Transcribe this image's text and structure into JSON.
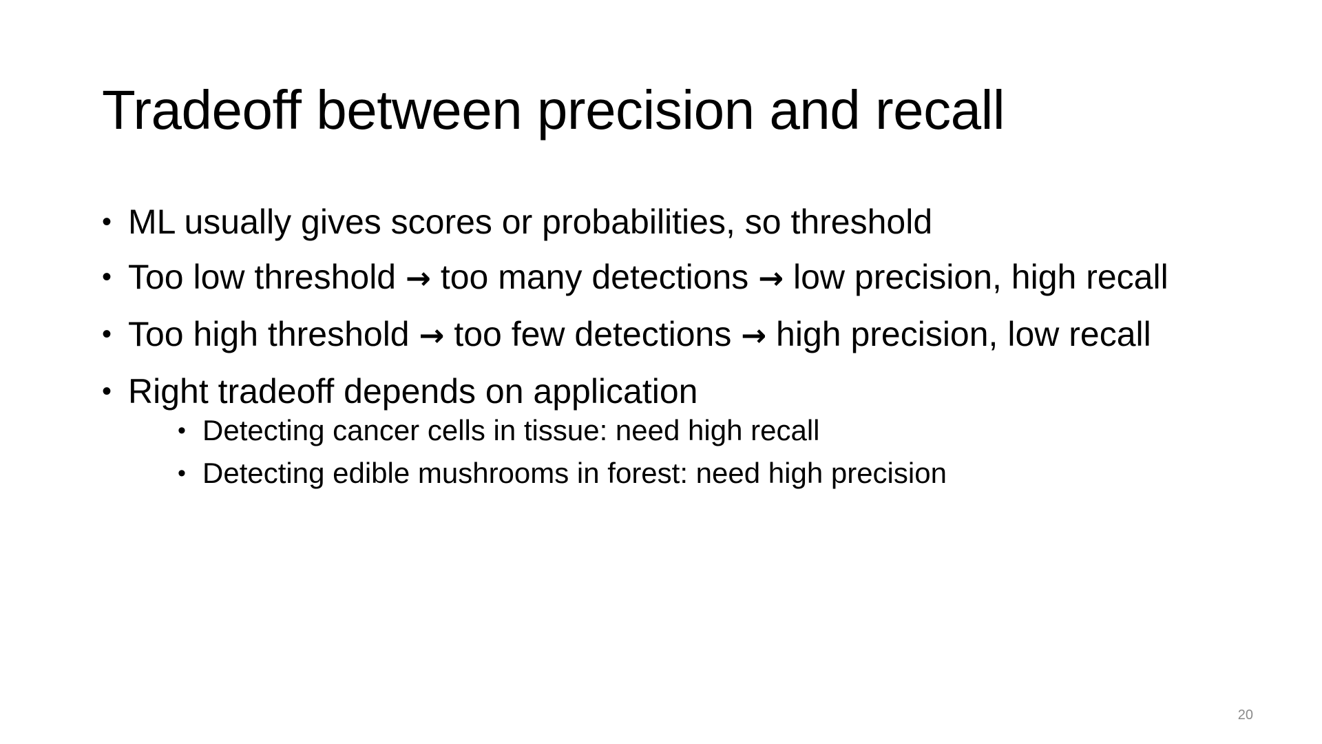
{
  "slide": {
    "title": "Tradeoff between precision and recall",
    "bullets": [
      {
        "text": "ML usually gives scores or probabilities, so threshold"
      },
      {
        "parts": [
          "Too low threshold",
          "too many detections",
          "low precision, high recall"
        ],
        "arrow": "→"
      },
      {
        "parts": [
          "Too high threshold",
          "too few detections",
          "high precision, low recall"
        ],
        "arrow": "→"
      },
      {
        "text": "Right tradeoff depends on application",
        "sub_bullets": [
          "Detecting cancer cells in tissue: need high recall",
          "Detecting edible mushrooms in forest: need high precision"
        ]
      }
    ],
    "page_number": "20"
  },
  "colors": {
    "background": "#ffffff",
    "text": "#000000",
    "page_number": "#8a8a8a"
  },
  "icons": {
    "bullet": "bullet-dot-icon",
    "arrow": "right-arrow-icon"
  }
}
